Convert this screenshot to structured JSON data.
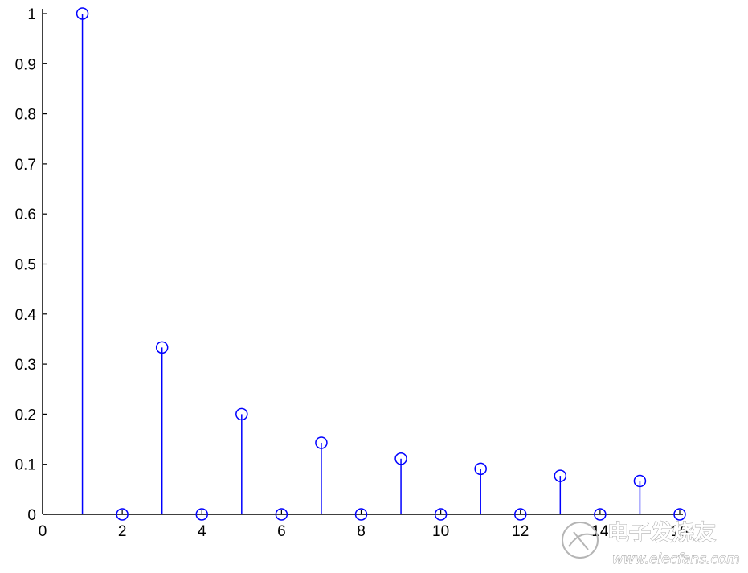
{
  "chart_data": {
    "type": "stem",
    "x": [
      1,
      2,
      3,
      4,
      5,
      6,
      7,
      8,
      9,
      10,
      11,
      12,
      13,
      14,
      15,
      16
    ],
    "values": [
      1,
      0,
      0.3333,
      0,
      0.2,
      0,
      0.1429,
      0,
      0.1111,
      0,
      0.0909,
      0,
      0.0769,
      0,
      0.0667,
      0
    ],
    "xlim": [
      0,
      16
    ],
    "ylim": [
      0,
      1
    ],
    "xticks": [
      "0",
      "2",
      "4",
      "6",
      "8",
      "10",
      "12",
      "14",
      "16"
    ],
    "yticks": [
      "0",
      "0.1",
      "0.2",
      "0.3",
      "0.4",
      "0.5",
      "0.6",
      "0.7",
      "0.8",
      "0.9",
      "1"
    ],
    "marker": "circle",
    "color": "#0000ff",
    "grid": false
  },
  "watermark": {
    "title": "电子发烧友",
    "url": "www.elecfans.com"
  }
}
